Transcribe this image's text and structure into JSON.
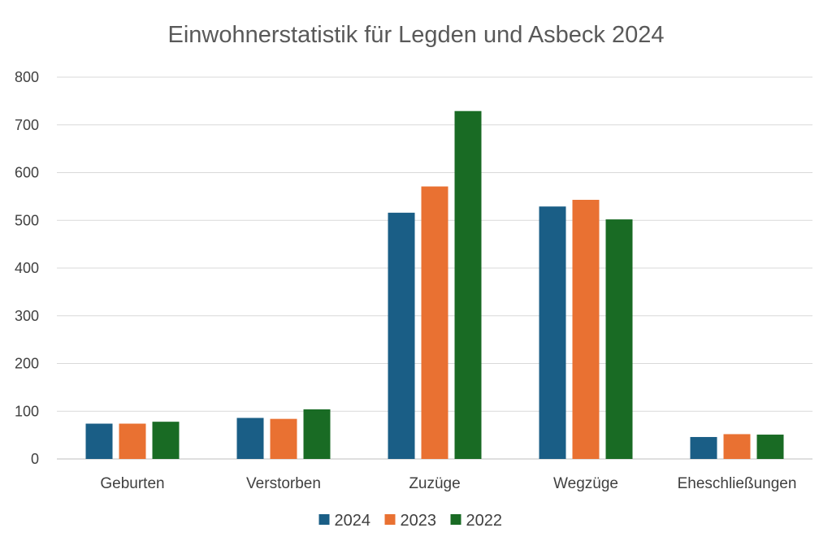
{
  "chart_data": {
    "type": "bar",
    "title": "Einwohnerstatistik für Legden und Asbeck 2024",
    "xlabel": "",
    "ylabel": "",
    "ylim": [
      0,
      800
    ],
    "yticks": [
      "0",
      "100",
      "200",
      "300",
      "400",
      "500",
      "600",
      "700",
      "800"
    ],
    "categories": [
      "Geburten",
      "Verstorben",
      "Zuzüge",
      "Wegzüge",
      "Eheschließungen"
    ],
    "series": [
      {
        "name": "2024",
        "color": "#1a5e86",
        "values": [
          74,
          86,
          516,
          529,
          46
        ]
      },
      {
        "name": "2023",
        "color": "#e97132",
        "values": [
          74,
          84,
          571,
          543,
          52
        ]
      },
      {
        "name": "2022",
        "color": "#196b24",
        "values": [
          78,
          104,
          729,
          502,
          51
        ]
      }
    ],
    "grid": true,
    "legend": "bottom"
  }
}
